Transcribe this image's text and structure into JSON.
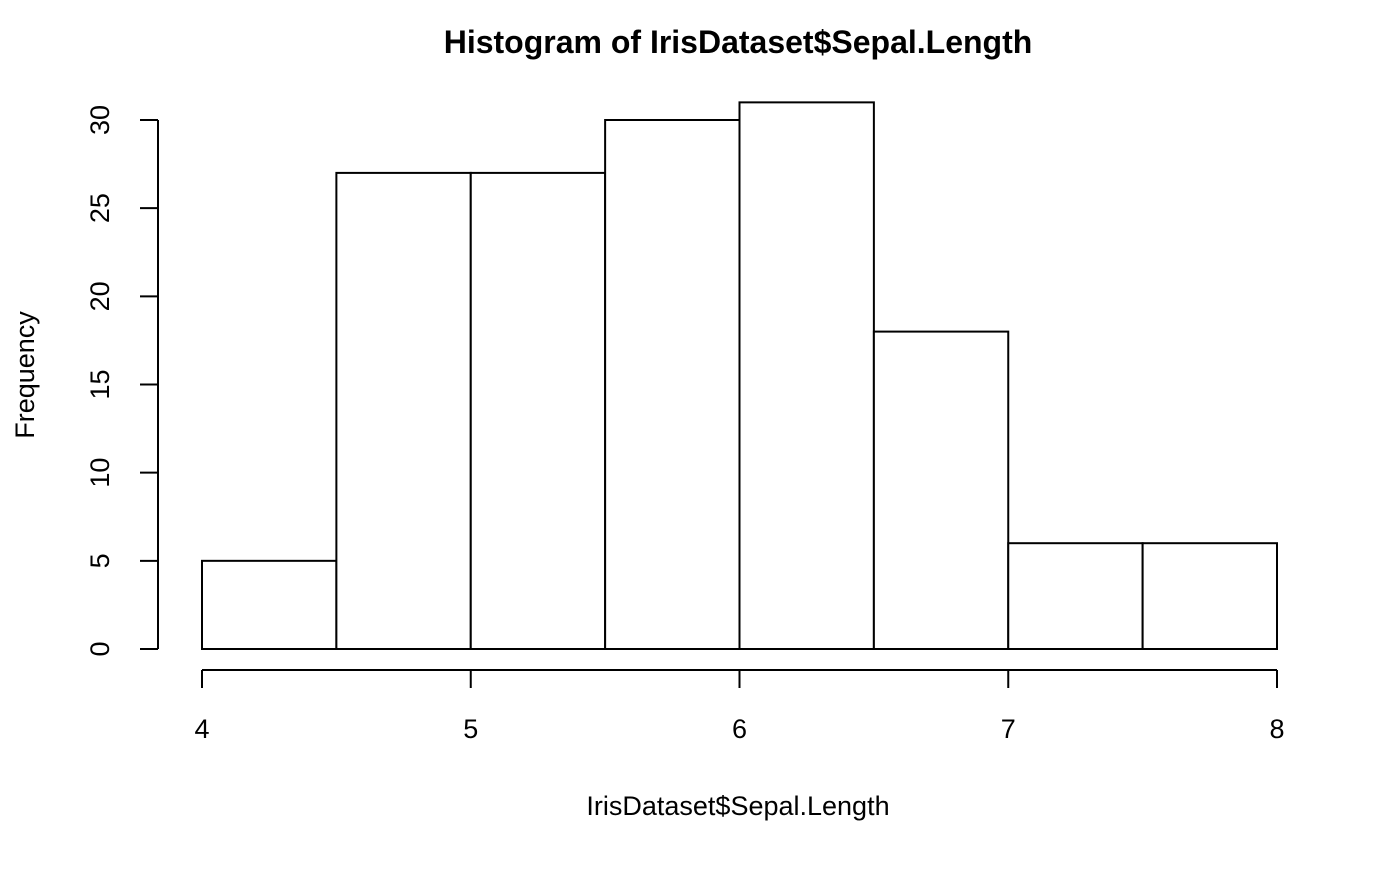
{
  "chart_data": {
    "type": "bar",
    "title": "Histogram of IrisDataset$Sepal.Length",
    "xlabel": "IrisDataset$Sepal.Length",
    "ylabel": "Frequency",
    "bins": [
      {
        "from": 4.0,
        "to": 4.5,
        "count": 5
      },
      {
        "from": 4.5,
        "to": 5.0,
        "count": 27
      },
      {
        "from": 5.0,
        "to": 5.5,
        "count": 27
      },
      {
        "from": 5.5,
        "to": 6.0,
        "count": 30
      },
      {
        "from": 6.0,
        "to": 6.5,
        "count": 31
      },
      {
        "from": 6.5,
        "to": 7.0,
        "count": 18
      },
      {
        "from": 7.0,
        "to": 7.5,
        "count": 6
      },
      {
        "from": 7.5,
        "to": 8.0,
        "count": 6
      }
    ],
    "xlim": [
      4,
      8
    ],
    "ylim": [
      0,
      30
    ],
    "x_ticks": [
      "4",
      "5",
      "6",
      "7",
      "8"
    ],
    "y_ticks": [
      "0",
      "5",
      "10",
      "15",
      "20",
      "25",
      "30"
    ],
    "bar_fill": "#ffffff",
    "bar_stroke": "#000000",
    "grid": false,
    "legend": "none"
  }
}
